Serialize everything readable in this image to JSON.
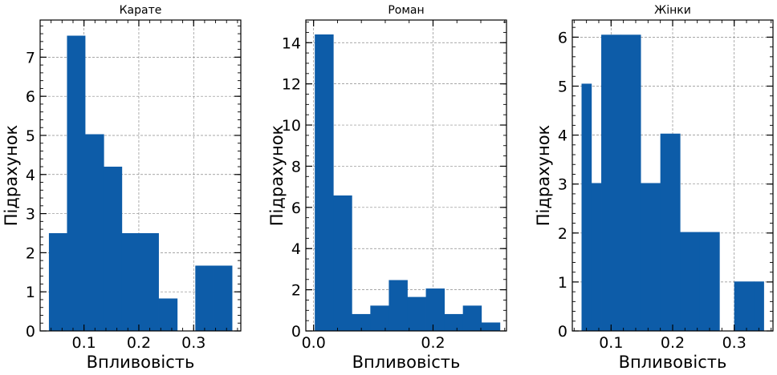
{
  "chart_data": [
    {
      "type": "bar",
      "title": "Карате",
      "xlabel": "Впливовість",
      "ylabel": "Підрахунок",
      "xlim": [
        0.02,
        0.386
      ],
      "ylim": [
        0,
        7.95
      ],
      "xticks": [
        0.1,
        0.2,
        0.3
      ],
      "xtick_labels": [
        "0.1",
        "0.2",
        "0.3"
      ],
      "yticks": [
        0,
        1,
        2,
        3,
        4,
        5,
        6,
        7
      ],
      "ytick_labels": [
        "0",
        "1",
        "2",
        "3",
        "4",
        "5",
        "6",
        "7"
      ],
      "grid": true,
      "color": "#0d5ca8",
      "bin_edges": [
        0.036,
        0.069,
        0.102,
        0.136,
        0.169,
        0.203,
        0.236,
        0.27,
        0.303,
        0.337,
        0.37
      ],
      "values": [
        2.5,
        7.55,
        5.03,
        4.2,
        2.5,
        2.5,
        0.83,
        0,
        1.67,
        1.67
      ]
    },
    {
      "type": "bar",
      "title": "Роман",
      "xlabel": "Впливовість",
      "ylabel": "Підрахунок",
      "xlim": [
        -0.013,
        0.323
      ],
      "ylim": [
        0,
        15.1
      ],
      "xticks": [
        0.0,
        0.2
      ],
      "xtick_labels": [
        "0.0",
        "0.2"
      ],
      "yticks": [
        0,
        2,
        4,
        6,
        8,
        10,
        12,
        14
      ],
      "ytick_labels": [
        "0",
        "2",
        "4",
        "6",
        "8",
        "10",
        "12",
        "14"
      ],
      "grid": true,
      "color": "#0d5ca8",
      "bin_edges": [
        0.002,
        0.033,
        0.064,
        0.095,
        0.126,
        0.157,
        0.188,
        0.219,
        0.25,
        0.281,
        0.312
      ],
      "values": [
        14.4,
        6.58,
        0.82,
        1.23,
        2.47,
        1.65,
        2.06,
        0.82,
        1.23,
        0.41
      ]
    },
    {
      "type": "bar",
      "title": "Жінки",
      "xlabel": "Впливовість",
      "ylabel": "Підрахунок",
      "xlim": [
        0.037,
        0.363
      ],
      "ylim": [
        0,
        6.35
      ],
      "xticks": [
        0.1,
        0.2,
        0.3
      ],
      "xtick_labels": [
        "0.1",
        "0.2",
        "0.3"
      ],
      "yticks": [
        0,
        1,
        2,
        3,
        4,
        5,
        6
      ],
      "ytick_labels": [
        "0",
        "1",
        "2",
        "3",
        "4",
        "5",
        "6"
      ],
      "grid": true,
      "color": "#0d5ca8",
      "bin_edges": [
        0.052,
        0.068,
        0.084,
        0.116,
        0.148,
        0.18,
        0.212,
        0.244,
        0.276,
        0.3,
        0.332,
        0.348
      ],
      "values": [
        5.05,
        3.02,
        6.05,
        6.05,
        3.02,
        4.03,
        2.02,
        2.02,
        0,
        1.01,
        1.01
      ]
    }
  ]
}
